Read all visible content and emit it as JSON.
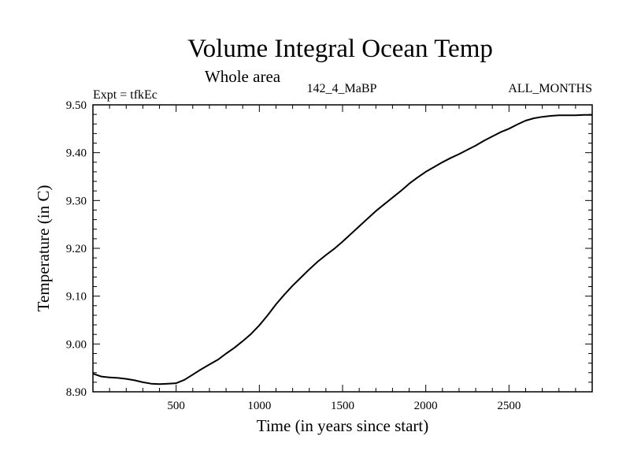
{
  "chart_data": {
    "type": "line",
    "title": "Volume Integral Ocean Temp",
    "subtitle": "Whole area",
    "experiment_label": "Expt = tfkEc",
    "run_label": "142_4_MaBP",
    "period_label": "ALL_MONTHS",
    "xlabel": "Time (in years since start)",
    "ylabel": "Temperature (in C)",
    "xlim": [
      0,
      3000
    ],
    "ylim": [
      8.9,
      9.5
    ],
    "x_ticks": [
      500,
      1000,
      1500,
      2000,
      2500
    ],
    "x_tick_labels": [
      "500",
      "1000",
      "1500",
      "2000",
      "2500"
    ],
    "y_ticks": [
      8.9,
      9.0,
      9.1,
      9.2,
      9.3,
      9.4,
      9.5
    ],
    "y_tick_labels": [
      "8.90",
      "9.00",
      "9.10",
      "9.20",
      "9.30",
      "9.40",
      "9.50"
    ],
    "grid": false,
    "series": [
      {
        "color": "#000000",
        "x": [
          0,
          50,
          100,
          150,
          200,
          250,
          300,
          350,
          400,
          450,
          500,
          550,
          600,
          650,
          700,
          750,
          800,
          850,
          900,
          950,
          1000,
          1050,
          1100,
          1150,
          1200,
          1250,
          1300,
          1350,
          1400,
          1450,
          1500,
          1550,
          1600,
          1650,
          1700,
          1750,
          1800,
          1850,
          1900,
          1950,
          2000,
          2050,
          2100,
          2150,
          2200,
          2250,
          2300,
          2350,
          2400,
          2450,
          2500,
          2550,
          2600,
          2650,
          2700,
          2750,
          2800,
          2850,
          2900,
          2950,
          3000
        ],
        "values": [
          8.938,
          8.932,
          8.93,
          8.929,
          8.927,
          8.924,
          8.92,
          8.917,
          8.916,
          8.917,
          8.918,
          8.925,
          8.936,
          8.947,
          8.957,
          8.967,
          8.98,
          8.992,
          9.006,
          9.021,
          9.039,
          9.06,
          9.083,
          9.103,
          9.122,
          9.139,
          9.156,
          9.172,
          9.186,
          9.199,
          9.214,
          9.23,
          9.246,
          9.262,
          9.278,
          9.292,
          9.306,
          9.32,
          9.335,
          9.348,
          9.36,
          9.37,
          9.38,
          9.389,
          9.397,
          9.406,
          9.415,
          9.425,
          9.434,
          9.443,
          9.45,
          9.459,
          9.467,
          9.472,
          9.475,
          9.477,
          9.478,
          9.478,
          9.478,
          9.479,
          9.479
        ]
      }
    ]
  }
}
